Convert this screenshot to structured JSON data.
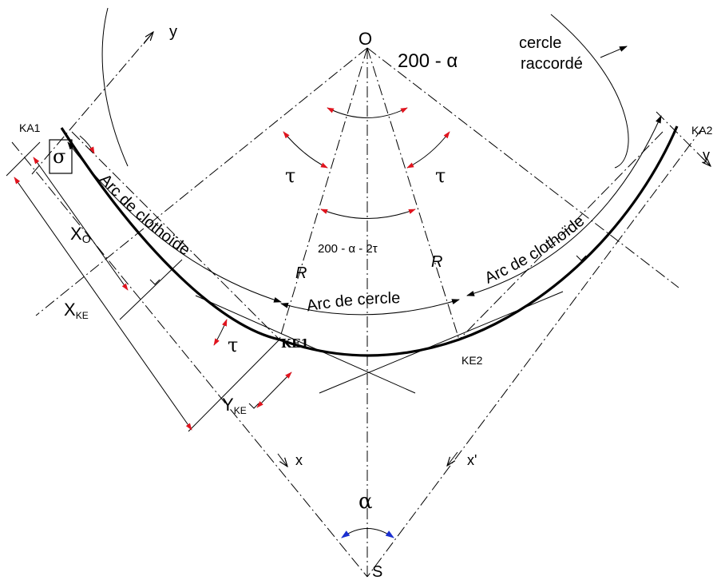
{
  "labels": {
    "center": "O",
    "apex": "S",
    "angle_top": "200 - α",
    "cercle_raccorde_1": "cercle",
    "cercle_raccorde_2": "raccordé",
    "tau_left": "τ",
    "tau_right": "τ",
    "tau_low": "τ",
    "sigma": "σ",
    "angle_mid": "200 - α - 2τ",
    "radius_left": "R",
    "radius_right": "R",
    "arc_clothoide_left": "Arc de clothoïde",
    "arc_clothoide_right": "Arc de clothoïde",
    "arc_cercle": "Arc de cercle",
    "ka1": "KA1",
    "ka2": "KA2",
    "ke1": "KE1",
    "ke2": "KE2",
    "x_o_main": "X",
    "x_o_sub": "O",
    "x_ke_main": "X",
    "x_ke_sub": "KE",
    "y_ke_main": "Y",
    "y_ke_sub": "KE",
    "axis_x": "x",
    "axis_x_prime": "x'",
    "axis_y": "y",
    "axis_y_right": "y",
    "alpha": "α"
  },
  "colors": {
    "line": "#000000",
    "arrow_red": "#e0141e",
    "arrow_blue": "#1a2fd0"
  }
}
